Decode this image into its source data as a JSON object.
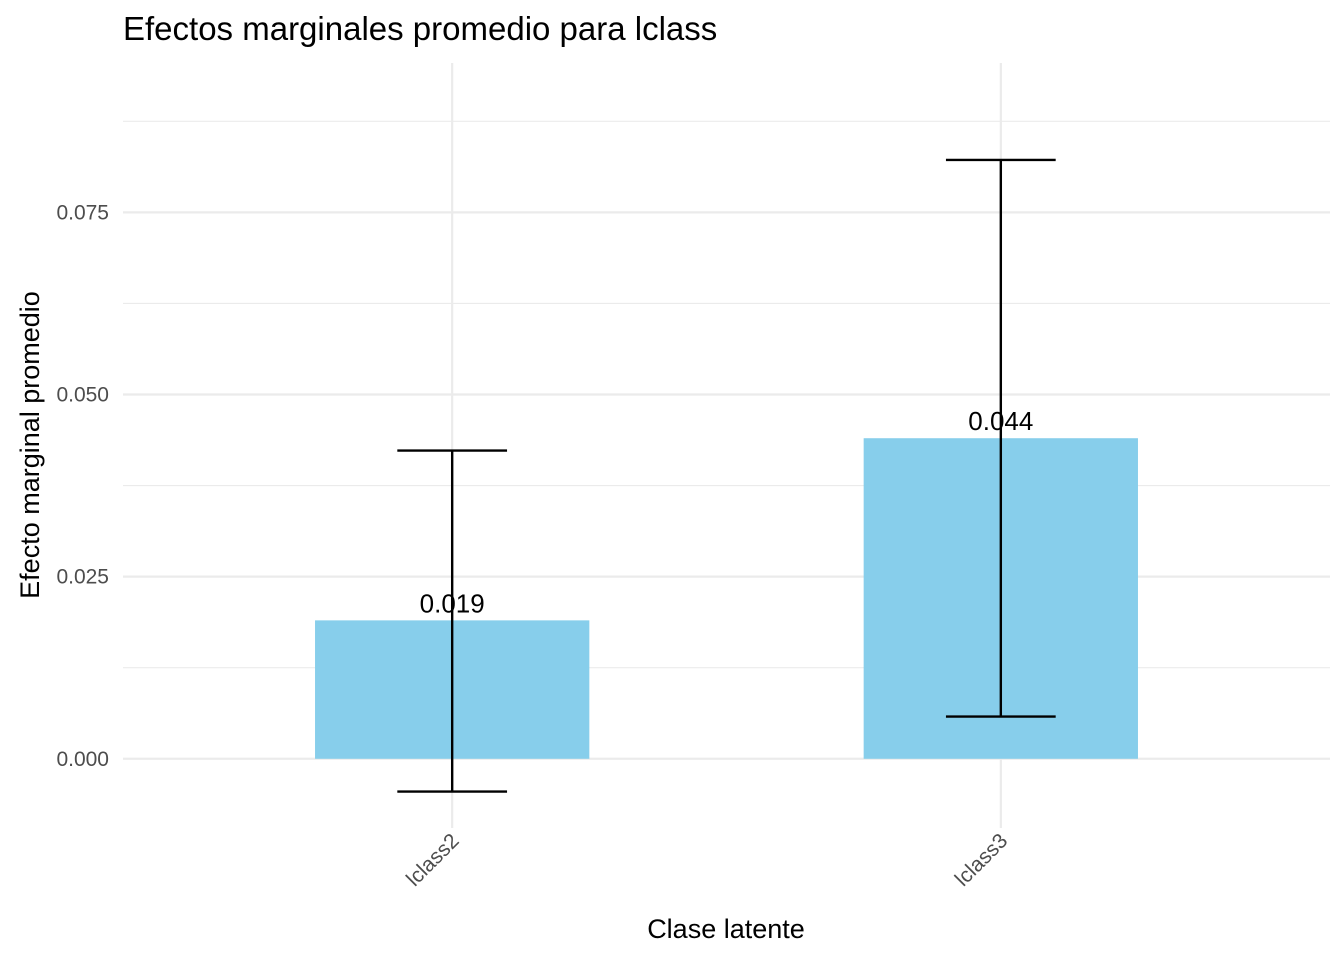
{
  "chart_data": {
    "type": "bar",
    "title": "Efectos marginales promedio para lclass",
    "xlabel": "Clase latente",
    "ylabel": "Efecto marginal promedio",
    "categories": [
      "lclass2",
      "lclass3"
    ],
    "values": [
      0.019,
      0.044
    ],
    "value_labels": [
      "0.019",
      "0.044"
    ],
    "error_bars": [
      {
        "lower": -0.0045,
        "upper": 0.0423
      },
      {
        "lower": 0.0058,
        "upper": 0.0822
      }
    ],
    "ylim": [
      -0.0095,
      0.0955
    ],
    "yticks": [
      0.0,
      0.025,
      0.05,
      0.075
    ],
    "ytick_labels": [
      "0.000",
      "0.025",
      "0.050",
      "0.075"
    ],
    "grid": true,
    "bar_color": "#87CEEB",
    "error_color": "#000000",
    "grid_color": "#EBEBEB"
  }
}
